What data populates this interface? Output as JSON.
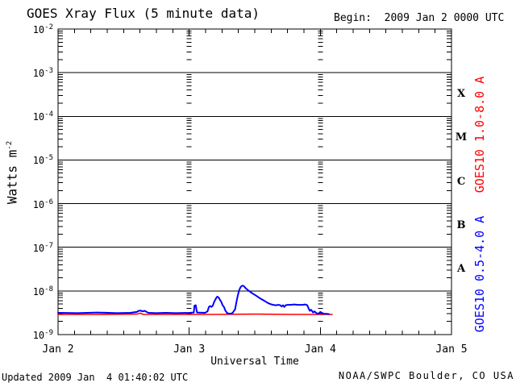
{
  "footer": {
    "updated": "Updated 2009 Jan  4 01:40:02 UTC",
    "credit": "NOAA/SWPC Boulder, CO USA"
  },
  "colors": {
    "background": "#ffffff",
    "axis": "#000000",
    "long_channel": "#ff0000",
    "short_channel": "#0000ff"
  },
  "chart_data": {
    "type": "line",
    "title": "GOES Xray Flux (5 minute data)",
    "begin_label": "Begin:  2009 Jan 2 0000 UTC",
    "xlabel": "Universal Time",
    "ylabel": {
      "text": "Watts m",
      "sup": "-2"
    },
    "y_base": "10",
    "y_exponents": [
      "-2",
      "-3",
      "-4",
      "-5",
      "-6",
      "-7",
      "-8",
      "-9"
    ],
    "ylim": [
      1e-09,
      0.01
    ],
    "xlim_days": [
      0,
      3
    ],
    "x_ticks": [
      {
        "label": "Jan 2",
        "day": 0
      },
      {
        "label": "Jan 3",
        "day": 1
      },
      {
        "label": "Jan 4",
        "day": 2
      },
      {
        "label": "Jan 5",
        "day": 3
      }
    ],
    "day_gridlines": [
      1,
      2
    ],
    "minor_tick_hours": 3,
    "grid": "log-minor-ticks-on-day-gridlines",
    "legend_position": "right-rotated",
    "flare_class_labels": [
      {
        "label": "X",
        "center_exp": -3.5
      },
      {
        "label": "M",
        "center_exp": -4.5
      },
      {
        "label": "C",
        "center_exp": -5.5
      },
      {
        "label": "B",
        "center_exp": -6.5
      },
      {
        "label": "A",
        "center_exp": -7.5
      }
    ],
    "series": [
      {
        "name": "GOES10 1.0-8.0 A",
        "color": "#ff0000",
        "points": [
          [
            0.0,
            2.9e-09
          ],
          [
            0.3,
            2.9e-09
          ],
          [
            0.6,
            2.95e-09
          ],
          [
            0.625,
            3.1e-09
          ],
          [
            0.65,
            2.9e-09
          ],
          [
            0.9,
            2.9e-09
          ],
          [
            1.2,
            2.9e-09
          ],
          [
            1.5,
            2.95e-09
          ],
          [
            1.8,
            2.9e-09
          ],
          [
            2.0,
            2.9e-09
          ],
          [
            2.09,
            2.9e-09
          ]
        ]
      },
      {
        "name": "GOES10 0.5-4.0 A",
        "color": "#0000ff",
        "points": [
          [
            0.0,
            3.15e-09
          ],
          [
            0.15,
            3.1e-09
          ],
          [
            0.3,
            3.2e-09
          ],
          [
            0.45,
            3.1e-09
          ],
          [
            0.55,
            3.15e-09
          ],
          [
            0.6,
            3.3e-09
          ],
          [
            0.615,
            3.5e-09
          ],
          [
            0.63,
            3.55e-09
          ],
          [
            0.645,
            3.4e-09
          ],
          [
            0.66,
            3.5e-09
          ],
          [
            0.675,
            3.3e-09
          ],
          [
            0.69,
            3.15e-09
          ],
          [
            0.75,
            3.1e-09
          ],
          [
            0.82,
            3.15e-09
          ],
          [
            0.9,
            3.1e-09
          ],
          [
            1.0,
            3.15e-09
          ],
          [
            1.035,
            3.2e-09
          ],
          [
            1.04,
            4.6e-09
          ],
          [
            1.05,
            4.7e-09
          ],
          [
            1.055,
            3.8e-09
          ],
          [
            1.06,
            3.2e-09
          ],
          [
            1.12,
            3.15e-09
          ],
          [
            1.14,
            3.4e-09
          ],
          [
            1.15,
            4.3e-09
          ],
          [
            1.16,
            4.5e-09
          ],
          [
            1.17,
            4.3e-09
          ],
          [
            1.18,
            4.6e-09
          ],
          [
            1.19,
            5.6e-09
          ],
          [
            1.2,
            6.4e-09
          ],
          [
            1.21,
            7.2e-09
          ],
          [
            1.215,
            7.4e-09
          ],
          [
            1.225,
            7e-09
          ],
          [
            1.235,
            6.2e-09
          ],
          [
            1.245,
            5.6e-09
          ],
          [
            1.255,
            4.7e-09
          ],
          [
            1.265,
            4.3e-09
          ],
          [
            1.275,
            3.6e-09
          ],
          [
            1.29,
            3.1e-09
          ],
          [
            1.31,
            3e-09
          ],
          [
            1.33,
            3.1e-09
          ],
          [
            1.35,
            3.8e-09
          ],
          [
            1.36,
            5.5e-09
          ],
          [
            1.37,
            7.8e-09
          ],
          [
            1.38,
            1.02e-08
          ],
          [
            1.39,
            1.2e-08
          ],
          [
            1.4,
            1.3e-08
          ],
          [
            1.41,
            1.32e-08
          ],
          [
            1.42,
            1.26e-08
          ],
          [
            1.43,
            1.16e-08
          ],
          [
            1.445,
            1.06e-08
          ],
          [
            1.46,
            9.8e-09
          ],
          [
            1.475,
            9.1e-09
          ],
          [
            1.49,
            8.5e-09
          ],
          [
            1.51,
            7.8e-09
          ],
          [
            1.53,
            7.1e-09
          ],
          [
            1.55,
            6.5e-09
          ],
          [
            1.575,
            5.9e-09
          ],
          [
            1.6,
            5.3e-09
          ],
          [
            1.62,
            5e-09
          ],
          [
            1.64,
            4.8e-09
          ],
          [
            1.66,
            4.7e-09
          ],
          [
            1.68,
            4.8e-09
          ],
          [
            1.695,
            4.7e-09
          ],
          [
            1.705,
            4.4e-09
          ],
          [
            1.715,
            4.7e-09
          ],
          [
            1.725,
            4.3e-09
          ],
          [
            1.735,
            4.7e-09
          ],
          [
            1.75,
            4.8e-09
          ],
          [
            1.77,
            4.8e-09
          ],
          [
            1.8,
            4.9e-09
          ],
          [
            1.83,
            4.8e-09
          ],
          [
            1.86,
            4.8e-09
          ],
          [
            1.885,
            4.9e-09
          ],
          [
            1.9,
            4.7e-09
          ],
          [
            1.91,
            4e-09
          ],
          [
            1.92,
            3.5e-09
          ],
          [
            1.93,
            3.7e-09
          ],
          [
            1.945,
            3.2e-09
          ],
          [
            1.955,
            3.4e-09
          ],
          [
            1.97,
            3.1e-09
          ],
          [
            1.985,
            3e-09
          ],
          [
            2.0,
            3.3e-09
          ],
          [
            2.015,
            3.1e-09
          ],
          [
            2.03,
            3e-09
          ],
          [
            2.05,
            3e-09
          ],
          [
            2.065,
            2.95e-09
          ]
        ]
      }
    ]
  }
}
